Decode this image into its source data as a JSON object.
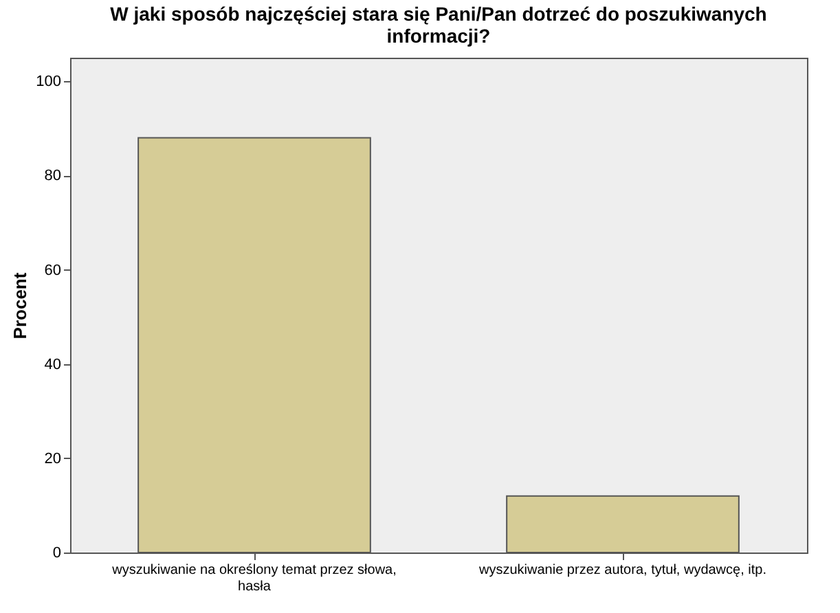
{
  "chart_data": {
    "type": "bar",
    "title": "W jaki sposób najczęściej stara się Pani/Pan dotrzeć do poszukiwanych informacji?",
    "ylabel": "Procent",
    "categories": [
      "wyszukiwanie na określony temat przez słowa, hasła",
      "wyszukiwanie przez autora, tytuł, wydawcę, itp."
    ],
    "values": [
      88,
      12
    ],
    "color": "#d6cc96",
    "ylim": [
      0,
      105
    ],
    "yticks": [
      0,
      20,
      40,
      60,
      80,
      100
    ],
    "grid": false
  }
}
